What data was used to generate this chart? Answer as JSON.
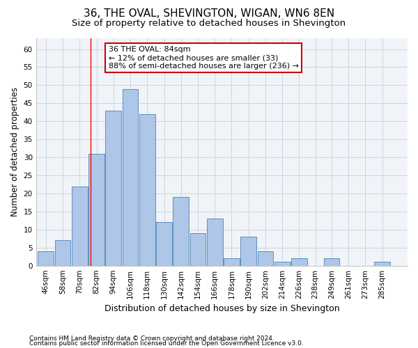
{
  "title1": "36, THE OVAL, SHEVINGTON, WIGAN, WN6 8EN",
  "title2": "Size of property relative to detached houses in Shevington",
  "xlabel": "Distribution of detached houses by size in Shevington",
  "ylabel": "Number of detached properties",
  "bar_values": [
    4,
    7,
    22,
    31,
    43,
    49,
    42,
    12,
    19,
    9,
    13,
    2,
    8,
    4,
    1,
    2,
    0,
    2,
    0,
    0,
    1
  ],
  "bin_labels": [
    "46sqm",
    "58sqm",
    "70sqm",
    "82sqm",
    "94sqm",
    "106sqm",
    "118sqm",
    "130sqm",
    "142sqm",
    "154sqm",
    "166sqm",
    "178sqm",
    "190sqm",
    "202sqm",
    "214sqm",
    "226sqm",
    "238sqm",
    "249sqm",
    "261sqm",
    "273sqm",
    "285sqm"
  ],
  "bin_edges": [
    46,
    58,
    70,
    82,
    94,
    106,
    118,
    130,
    142,
    154,
    166,
    178,
    190,
    202,
    214,
    226,
    238,
    249,
    261,
    273,
    285,
    297
  ],
  "bar_color": "#aec6e8",
  "bar_edge_color": "#5b8fc0",
  "red_line_x": 84,
  "annotation_line1": "36 THE OVAL: 84sqm",
  "annotation_line2": "← 12% of detached houses are smaller (33)",
  "annotation_line3": "88% of semi-detached houses are larger (236) →",
  "annotation_box_color": "#ffffff",
  "annotation_box_edge": "#cc0000",
  "ylim": [
    0,
    63
  ],
  "yticks": [
    0,
    5,
    10,
    15,
    20,
    25,
    30,
    35,
    40,
    45,
    50,
    55,
    60
  ],
  "footer1": "Contains HM Land Registry data © Crown copyright and database right 2024.",
  "footer2": "Contains public sector information licensed under the Open Government Licence v3.0.",
  "title1_fontsize": 11,
  "title2_fontsize": 9.5,
  "xlabel_fontsize": 9,
  "ylabel_fontsize": 8.5,
  "tick_fontsize": 7.5,
  "footer_fontsize": 6.5,
  "annotation_fontsize": 8
}
